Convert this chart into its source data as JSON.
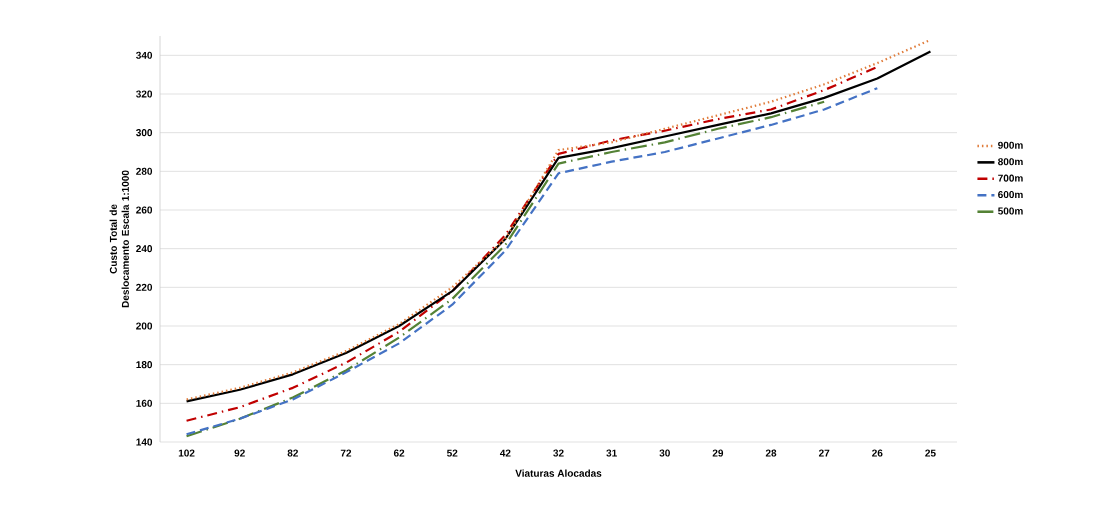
{
  "chart_data": {
    "type": "line",
    "xlabel": "Viaturas Alocadas",
    "ylabel": "Custo Total de Deslocamento Escala  1:1000",
    "categories": [
      "102",
      "92",
      "82",
      "72",
      "62",
      "52",
      "42",
      "32",
      "31",
      "30",
      "29",
      "28",
      "27",
      "26",
      "25"
    ],
    "ylim": [
      140,
      350
    ],
    "yticks": [
      140,
      160,
      180,
      200,
      220,
      240,
      260,
      280,
      300,
      320,
      340
    ],
    "grid": "y",
    "legend": "right",
    "series": [
      {
        "name": "900m",
        "color": "#e07b39",
        "line_style": "dotted",
        "values": [
          162,
          168,
          176,
          187,
          201,
          220,
          245,
          291,
          295,
          302,
          309,
          316,
          325,
          336,
          348
        ]
      },
      {
        "name": "800m",
        "color": "#000000",
        "line_style": "solid",
        "values": [
          161,
          167,
          175,
          186,
          200,
          218,
          245,
          287,
          292,
          298,
          304,
          310,
          318,
          328,
          342
        ]
      },
      {
        "name": "700m",
        "color": "#c00000",
        "line_style": "dashdot",
        "values": [
          151,
          158,
          168,
          181,
          197,
          218,
          247,
          289,
          296,
          301,
          307,
          312,
          322,
          334,
          null
        ]
      },
      {
        "name": "600m",
        "color": "#4472c4",
        "line_style": "dashed",
        "values": [
          144,
          152,
          162,
          176,
          191,
          211,
          239,
          279,
          285,
          290,
          297,
          304,
          312,
          323,
          null
        ]
      },
      {
        "name": "500m",
        "color": "#548235",
        "line_style": "longdashdot",
        "values": [
          143,
          152,
          163,
          177,
          194,
          214,
          242,
          284,
          290,
          295,
          302,
          308,
          316,
          null,
          null
        ]
      }
    ]
  }
}
